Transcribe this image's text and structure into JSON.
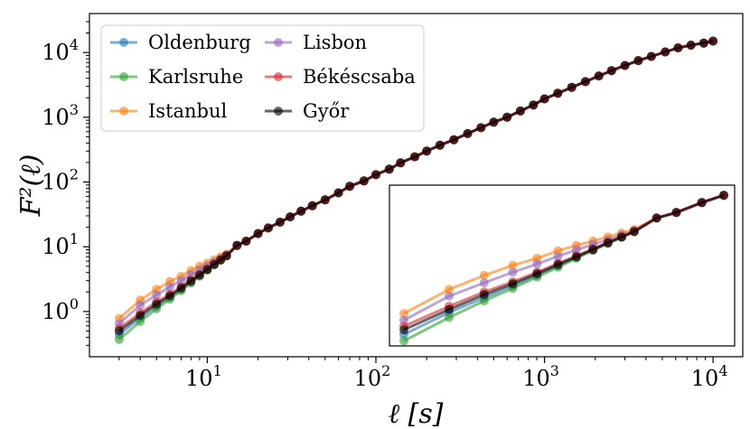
{
  "chart_data": {
    "type": "line",
    "xlabel": "ℓ [s]",
    "ylabel": "F²(ℓ)",
    "xscale": "log",
    "yscale": "log",
    "xlim": [
      2,
      15000
    ],
    "ylim": [
      0.2,
      40000
    ],
    "x_ticks": [
      {
        "value": 10,
        "base": "10",
        "exp": "1"
      },
      {
        "value": 100,
        "base": "10",
        "exp": "2"
      },
      {
        "value": 1000,
        "base": "10",
        "exp": "3"
      },
      {
        "value": 10000,
        "base": "10",
        "exp": "4"
      }
    ],
    "y_ticks": [
      {
        "value": 1,
        "base": "10",
        "exp": "0"
      },
      {
        "value": 10,
        "base": "10",
        "exp": "1"
      },
      {
        "value": 100,
        "base": "10",
        "exp": "2"
      },
      {
        "value": 1000,
        "base": "10",
        "exp": "3"
      },
      {
        "value": 10000,
        "base": "10",
        "exp": "4"
      }
    ],
    "legend": {
      "position": "upper-left",
      "columns": 2
    },
    "x": [
      3,
      4,
      5,
      6,
      7,
      8,
      9,
      10,
      11,
      12,
      13,
      15,
      17,
      20,
      23,
      27,
      31,
      36,
      42,
      50,
      60,
      70,
      85,
      100,
      120,
      140,
      170,
      200,
      240,
      290,
      350,
      420,
      500,
      600,
      720,
      860,
      1000,
      1200,
      1450,
      1750,
      2100,
      2500,
      3000,
      3600,
      4300,
      5200,
      6200,
      7400,
      8800,
      10000
    ],
    "shared_tail_start_index": 11,
    "tail": [
      10.5,
      12.2,
      16,
      19.5,
      24,
      29,
      35.5,
      43,
      53,
      68,
      86,
      104,
      130,
      158,
      198,
      245,
      300,
      370,
      450,
      560,
      690,
      840,
      1000,
      1250,
      1550,
      1920,
      2350,
      2900,
      3550,
      4350,
      5250,
      6300,
      7500,
      8700,
      10200,
      11800,
      13000,
      14000,
      15000
    ],
    "series": [
      {
        "name": "Oldenburg",
        "color": "#1f77b4",
        "head": [
          0.44,
          0.8,
          1.2,
          1.65,
          2.2,
          2.85,
          3.6,
          4.4,
          5.3,
          6.25,
          7.25
        ]
      },
      {
        "name": "Karlsruhe",
        "color": "#2ca02c",
        "head": [
          0.37,
          0.7,
          1.1,
          1.55,
          2.1,
          2.75,
          3.5,
          4.35,
          5.25,
          6.2,
          7.2
        ]
      },
      {
        "name": "Istanbul",
        "color": "#ff7f0e",
        "head": [
          0.78,
          1.5,
          2.2,
          2.9,
          3.5,
          4.3,
          5.0,
          5.6,
          6.3,
          7.0,
          7.7
        ]
      },
      {
        "name": "Lisbon",
        "color": "#9467bd",
        "head": [
          0.65,
          1.25,
          1.8,
          2.4,
          3.0,
          3.7,
          4.4,
          5.1,
          5.8,
          6.6,
          7.4
        ]
      },
      {
        "name": "Békéscsaba",
        "color": "#d62728",
        "head": [
          0.55,
          0.95,
          1.4,
          1.85,
          2.4,
          3.05,
          3.75,
          4.5,
          5.4,
          6.3,
          7.3
        ]
      },
      {
        "name": "Győr",
        "color": "#000000",
        "head": [
          0.5,
          0.87,
          1.3,
          1.75,
          2.3,
          2.95,
          3.65,
          4.45,
          5.35,
          6.25,
          7.25
        ]
      }
    ],
    "inset": {
      "x_points": 15
    }
  }
}
